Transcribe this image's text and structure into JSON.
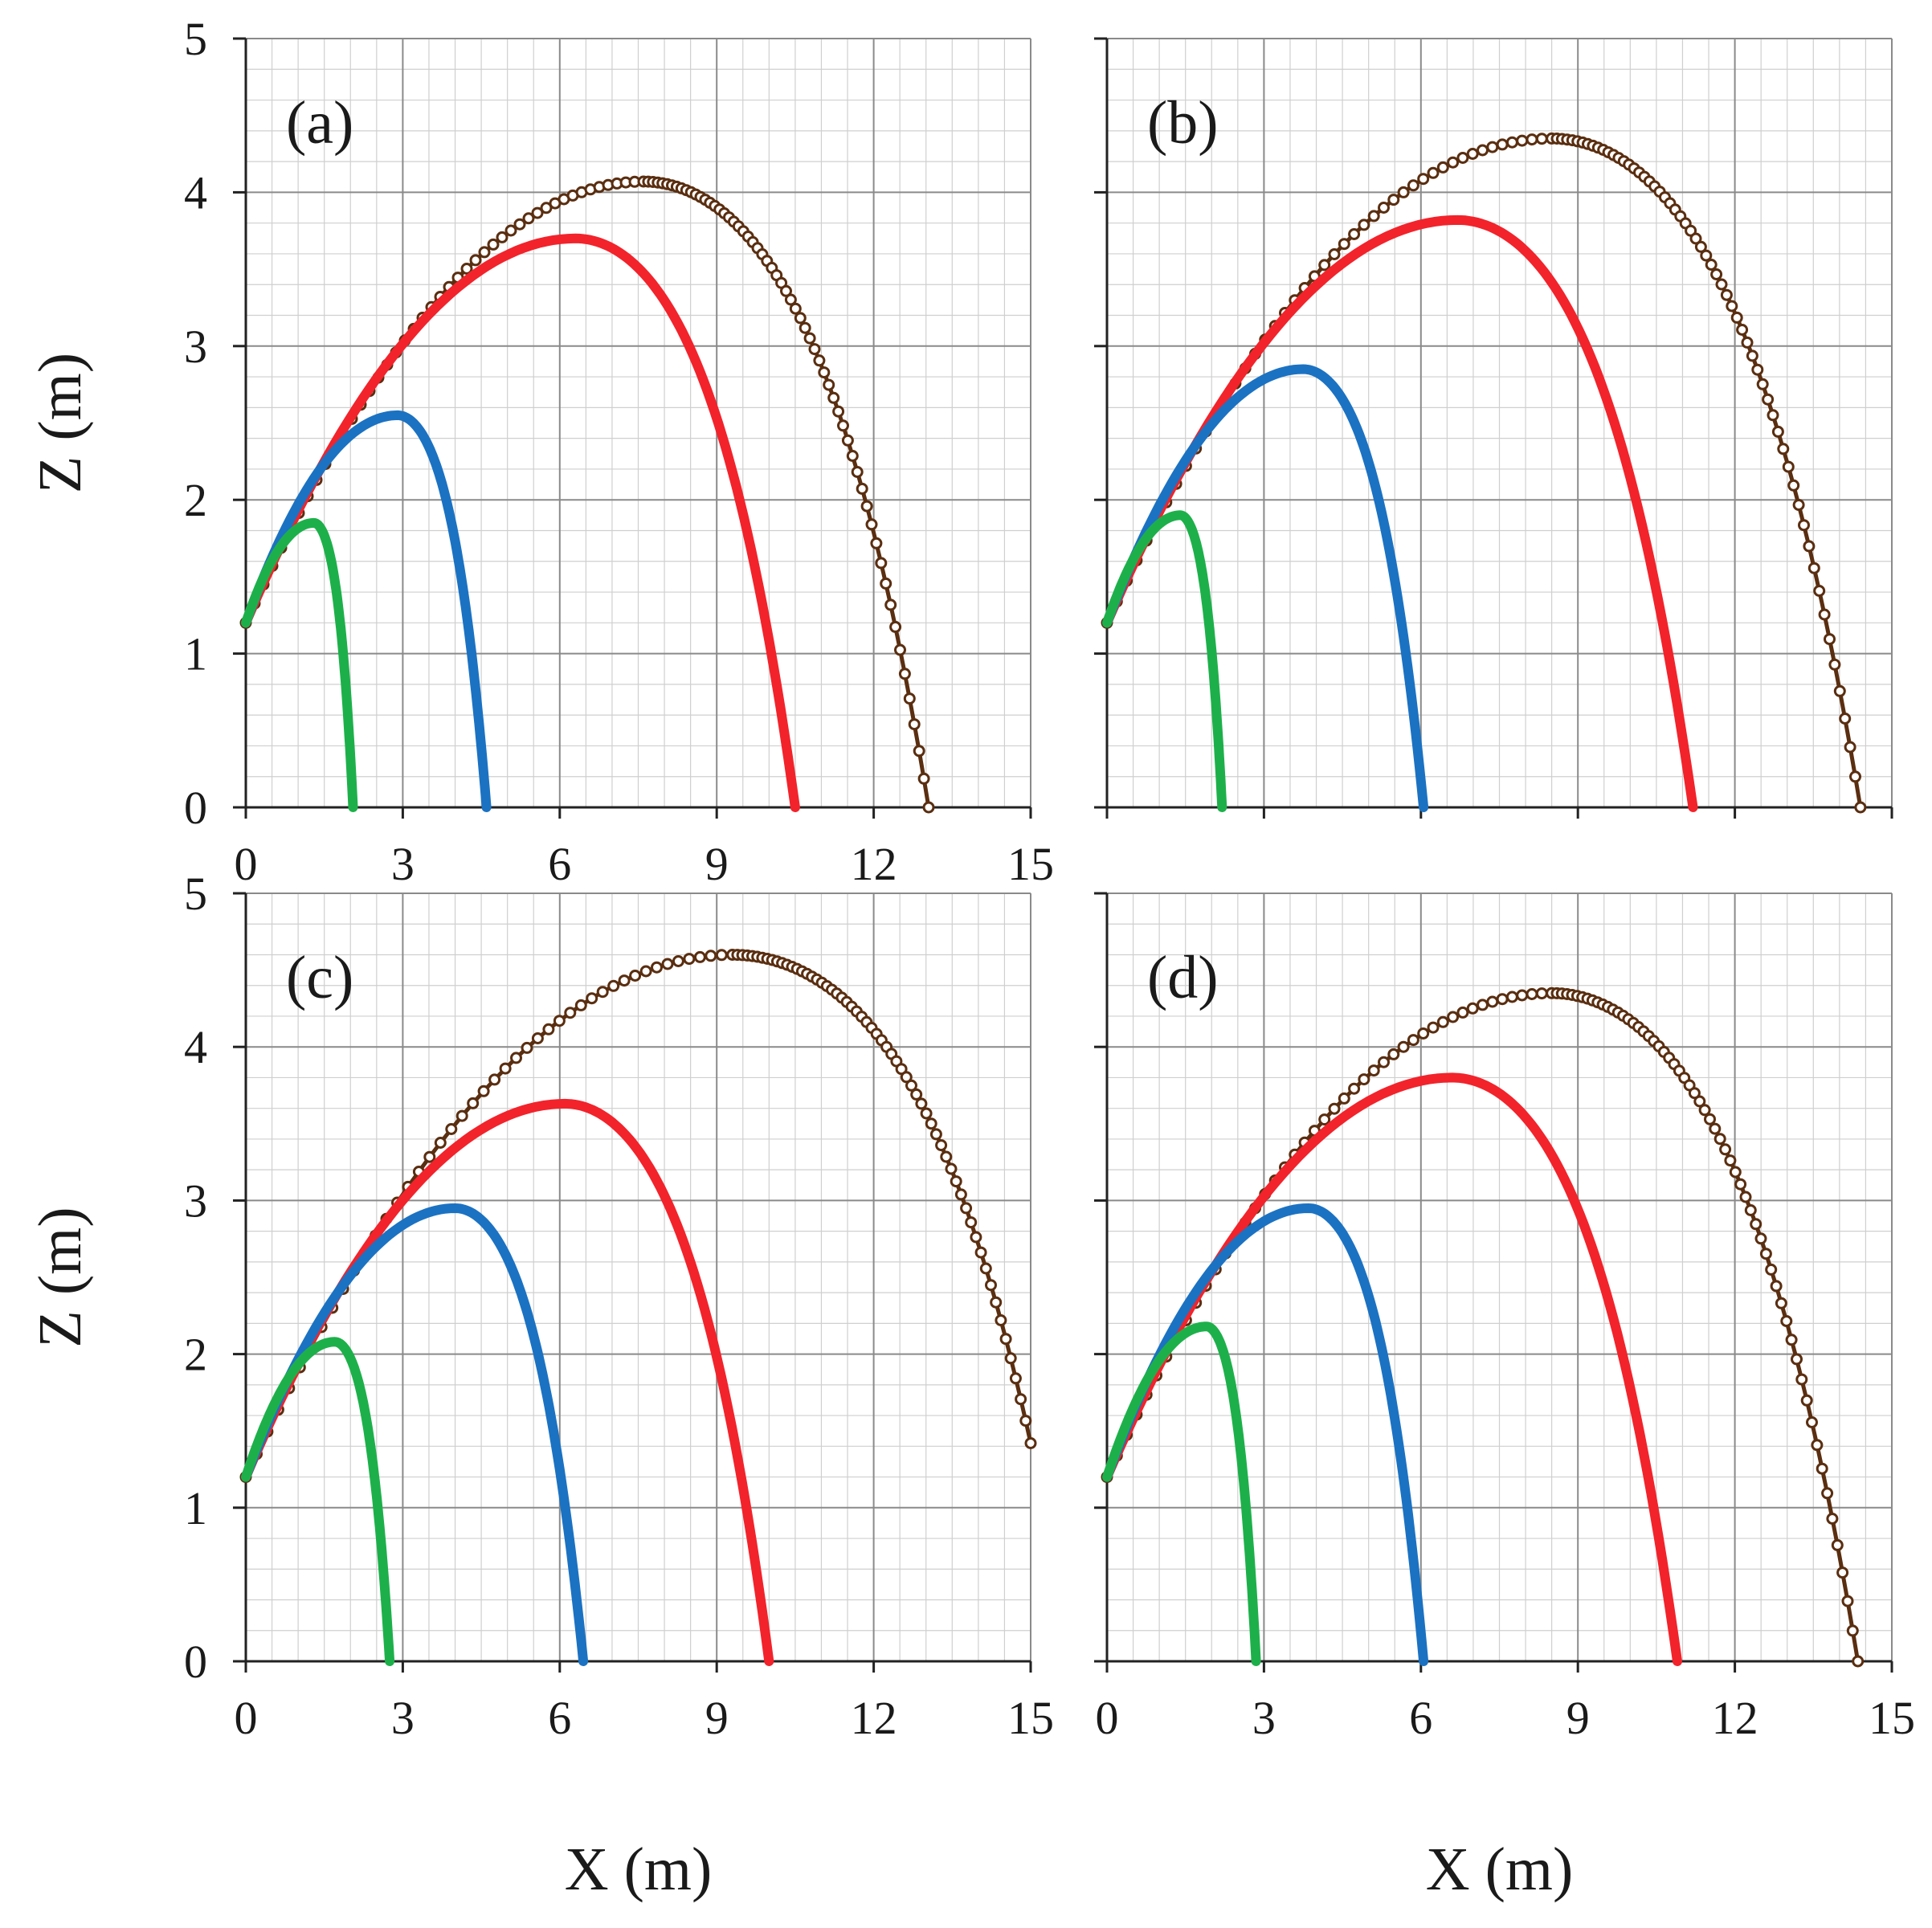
{
  "colors": {
    "series": [
      "#1db04a",
      "#1b72c2",
      "#f2232b",
      "#5a2e10"
    ],
    "grid_minor": "#cfcfcf",
    "grid_major": "#8a8a8a",
    "axis": "#222222"
  },
  "chart_data": [
    {
      "type": "scatter",
      "panel_label": "(a)",
      "xlabel": "",
      "ylabel": "Z (m)",
      "xlim": [
        0,
        15
      ],
      "ylim": [
        0,
        5
      ],
      "xticks": [
        "0",
        "3",
        "6",
        "9",
        "12",
        "15"
      ],
      "yticks": [
        "0",
        "1",
        "2",
        "3",
        "4",
        "5"
      ],
      "grid": true,
      "series": [
        {
          "name": "green",
          "x0": 0,
          "z0": 1.2,
          "peak_x": 1.3,
          "peak_z": 1.85,
          "end_x": 2.05,
          "end_z": 0
        },
        {
          "name": "blue",
          "x0": 0,
          "z0": 1.2,
          "peak_x": 2.9,
          "peak_z": 2.55,
          "end_x": 4.6,
          "end_z": 0
        },
        {
          "name": "red",
          "x0": 0,
          "z0": 1.2,
          "peak_x": 6.3,
          "peak_z": 3.7,
          "end_x": 10.5,
          "end_z": 0
        },
        {
          "name": "brown",
          "x0": 0,
          "z0": 1.2,
          "peak_x": 7.6,
          "peak_z": 4.07,
          "end_x": 13.05,
          "end_z": 0
        }
      ]
    },
    {
      "type": "scatter",
      "panel_label": "(b)",
      "xlabel": "",
      "ylabel": "",
      "xlim": [
        0,
        15
      ],
      "ylim": [
        0,
        5
      ],
      "xticks": [],
      "yticks": [],
      "grid": true,
      "series": [
        {
          "name": "green",
          "x0": 0,
          "z0": 1.2,
          "peak_x": 1.4,
          "peak_z": 1.9,
          "end_x": 2.2,
          "end_z": 0
        },
        {
          "name": "blue",
          "x0": 0,
          "z0": 1.2,
          "peak_x": 3.75,
          "peak_z": 2.85,
          "end_x": 6.05,
          "end_z": 0
        },
        {
          "name": "red",
          "x0": 0,
          "z0": 1.2,
          "peak_x": 6.7,
          "peak_z": 3.82,
          "end_x": 11.2,
          "end_z": 0
        },
        {
          "name": "brown",
          "x0": 0,
          "z0": 1.2,
          "peak_x": 8.5,
          "peak_z": 4.35,
          "end_x": 14.4,
          "end_z": 0
        }
      ]
    },
    {
      "type": "scatter",
      "panel_label": "(c)",
      "xlabel": "X (m)",
      "ylabel": "Z (m)",
      "xlim": [
        0,
        15
      ],
      "ylim": [
        0,
        5
      ],
      "xticks": [
        "0",
        "3",
        "6",
        "9",
        "12",
        "15"
      ],
      "yticks": [
        "0",
        "1",
        "2",
        "3",
        "4",
        "5"
      ],
      "grid": true,
      "series": [
        {
          "name": "green",
          "x0": 0,
          "z0": 1.2,
          "peak_x": 1.7,
          "peak_z": 2.08,
          "end_x": 2.75,
          "end_z": 0
        },
        {
          "name": "blue",
          "x0": 0,
          "z0": 1.2,
          "peak_x": 4.0,
          "peak_z": 2.95,
          "end_x": 6.45,
          "end_z": 0
        },
        {
          "name": "red",
          "x0": 0,
          "z0": 1.2,
          "peak_x": 6.1,
          "peak_z": 3.63,
          "end_x": 10.0,
          "end_z": 0
        },
        {
          "name": "brown",
          "x0": 0,
          "z0": 1.2,
          "peak_x": 9.3,
          "peak_z": 4.6,
          "end_x": 15.0,
          "end_z": 1.42
        }
      ]
    },
    {
      "type": "scatter",
      "panel_label": "(d)",
      "xlabel": "X (m)",
      "ylabel": "",
      "xlim": [
        0,
        15
      ],
      "ylim": [
        0,
        5
      ],
      "xticks": [
        "0",
        "3",
        "6",
        "9",
        "12",
        "15"
      ],
      "yticks": [],
      "grid": true,
      "series": [
        {
          "name": "green",
          "x0": 0,
          "z0": 1.2,
          "peak_x": 1.9,
          "peak_z": 2.18,
          "end_x": 2.85,
          "end_z": 0
        },
        {
          "name": "blue",
          "x0": 0,
          "z0": 1.2,
          "peak_x": 3.85,
          "peak_z": 2.95,
          "end_x": 6.05,
          "end_z": 0
        },
        {
          "name": "red",
          "x0": 0,
          "z0": 1.2,
          "peak_x": 6.6,
          "peak_z": 3.8,
          "end_x": 10.9,
          "end_z": 0
        },
        {
          "name": "brown",
          "x0": 0,
          "z0": 1.2,
          "peak_x": 8.5,
          "peak_z": 4.35,
          "end_x": 14.35,
          "end_z": 0
        }
      ]
    }
  ]
}
